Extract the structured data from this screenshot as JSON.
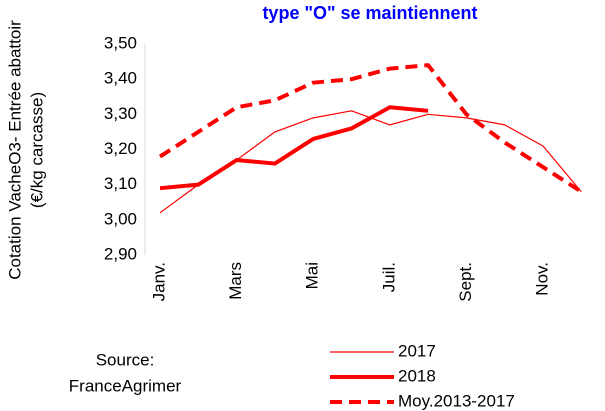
{
  "chart_data": {
    "type": "line",
    "title": "type \"O\" se maintiennent",
    "y_label": [
      "Cotation  VacheO3- Entrée abattoir",
      "(€/kg carcasse)"
    ],
    "annotation": [
      "Source:",
      "FranceAgrimer"
    ],
    "categories": [
      "Janv.",
      null,
      "Mars",
      null,
      "Mai",
      null,
      "Juil.",
      null,
      "Sept.",
      null,
      "Nov.",
      null
    ],
    "series": [
      {
        "name": "2017",
        "color": "#ff0000",
        "width": 1.2,
        "dashed": false,
        "values": [
          3.02,
          3.1,
          3.17,
          3.25,
          3.29,
          3.31,
          3.27,
          3.3,
          3.29,
          3.27,
          3.21,
          3.08
        ]
      },
      {
        "name": "2018",
        "color": "#ff0000",
        "width": 4,
        "dashed": false,
        "values": [
          3.09,
          3.1,
          3.17,
          3.16,
          3.23,
          3.26,
          3.32,
          3.31,
          null,
          null,
          null,
          null
        ]
      },
      {
        "name": "Moy.2013-2017",
        "color": "#ff0000",
        "width": 4,
        "dashed": true,
        "values": [
          3.18,
          3.25,
          3.32,
          3.34,
          3.39,
          3.4,
          3.43,
          3.44,
          3.3,
          3.22,
          3.15,
          3.08
        ]
      }
    ],
    "ylim": [
      2.9,
      3.5
    ],
    "yticks": [
      {
        "value": 2.9,
        "label": "2,90"
      },
      {
        "value": 3.0,
        "label": "3,00"
      },
      {
        "value": 3.1,
        "label": "3,10"
      },
      {
        "value": 3.2,
        "label": "3,20"
      },
      {
        "value": 3.3,
        "label": "3,30"
      },
      {
        "value": 3.4,
        "label": "3,40"
      },
      {
        "value": 3.5,
        "label": "3,50"
      }
    ],
    "grid": false
  }
}
